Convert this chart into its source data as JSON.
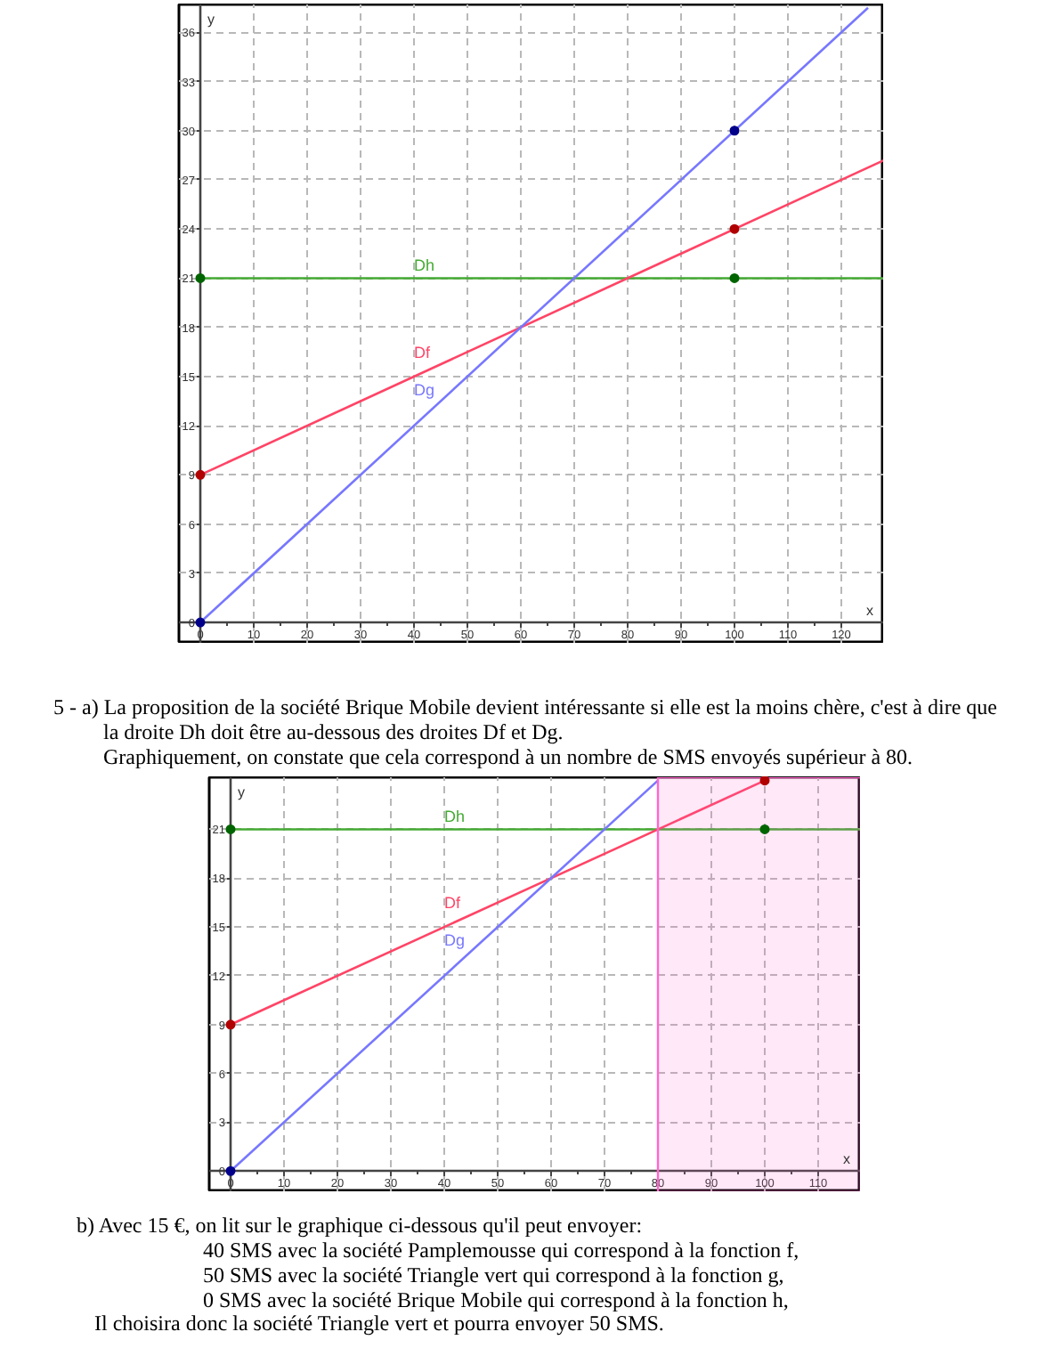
{
  "chart_data": [
    {
      "type": "line",
      "xlabel": "x",
      "ylabel": "y",
      "xlim": [
        -4,
        128
      ],
      "ylim": [
        -1.3,
        37.7
      ],
      "xticks": [
        0,
        10,
        20,
        30,
        40,
        50,
        60,
        70,
        80,
        90,
        100,
        110,
        120
      ],
      "yticks": [
        0,
        3,
        6,
        9,
        12,
        15,
        18,
        21,
        24,
        27,
        30,
        33,
        36
      ],
      "grid": true,
      "series": [
        {
          "name": "Dh",
          "color": "#44aa33",
          "x": [
            0,
            128
          ],
          "values": [
            21,
            21
          ]
        },
        {
          "name": "Df",
          "color": "#ff4466",
          "x": [
            0,
            128
          ],
          "values": [
            9,
            28.2
          ]
        },
        {
          "name": "Dg",
          "color": "#7777ff",
          "x": [
            0,
            125
          ],
          "values": [
            0,
            37.5
          ]
        },
        {
          "type": "scatter",
          "marker": "circle",
          "color": "#006400",
          "x": [
            0,
            100
          ],
          "values": [
            21,
            21
          ]
        },
        {
          "type": "scatter",
          "marker": "circle",
          "color": "#b00000",
          "x": [
            0,
            100
          ],
          "values": [
            9,
            24
          ]
        },
        {
          "type": "scatter",
          "marker": "circle",
          "color": "#00008b",
          "x": [
            0,
            100
          ],
          "values": [
            0,
            30
          ]
        }
      ],
      "annotations": [
        "5 - a) La proposition de la société Brique Mobile devient intéressante si elle est la moins chère, c'est à dire que",
        "la droite Dh doit être au-dessous des droites Df et Dg.",
        "Graphiquement, on constate que cela correspond à un nombre de SMS envoyés supérieur à 80."
      ]
    },
    {
      "type": "line",
      "xlabel": "x",
      "ylabel": "y",
      "xlim": [
        -4,
        118
      ],
      "ylim": [
        -1.3,
        24.2
      ],
      "xticks": [
        0,
        10,
        20,
        30,
        40,
        50,
        60,
        70,
        80,
        90,
        100,
        110
      ],
      "yticks": [
        0,
        3,
        6,
        9,
        12,
        15,
        18,
        21
      ],
      "grid": true,
      "bands": [
        {
          "axis": "x",
          "from": 80,
          "to": 118,
          "color": "#ff66cc"
        }
      ],
      "series": [
        {
          "name": "Dh",
          "color": "#44aa33",
          "x": [
            0,
            118
          ],
          "values": [
            21,
            21
          ]
        },
        {
          "name": "Df",
          "color": "#ff4466",
          "x": [
            0,
            100
          ],
          "values": [
            9,
            24
          ]
        },
        {
          "name": "Dg",
          "color": "#7777ff",
          "x": [
            0,
            80
          ],
          "values": [
            0,
            24
          ]
        },
        {
          "type": "scatter",
          "marker": "circle",
          "color": "#006400",
          "x": [
            0,
            100
          ],
          "values": [
            21,
            21
          ]
        },
        {
          "type": "scatter",
          "marker": "circle",
          "color": "#b00000",
          "x": [
            0,
            100
          ],
          "values": [
            9,
            24
          ]
        },
        {
          "type": "scatter",
          "marker": "circle",
          "color": "#00008b",
          "x": [
            0
          ],
          "values": [
            0
          ]
        }
      ],
      "annotations": [
        "b) Avec 15 €, on lit sur le graphique ci-dessous qu'il peut envoyer:",
        "40 SMS avec la société Pamplemousse qui correspond à la fonction f,",
        "50 SMS avec la société Triangle vert qui correspond à la fonction g,",
        "0 SMS avec la société Brique Mobile qui correspond à la fonction h,",
        "Il choisira donc la société Triangle vert et pourra envoyer 50 SMS."
      ]
    }
  ]
}
